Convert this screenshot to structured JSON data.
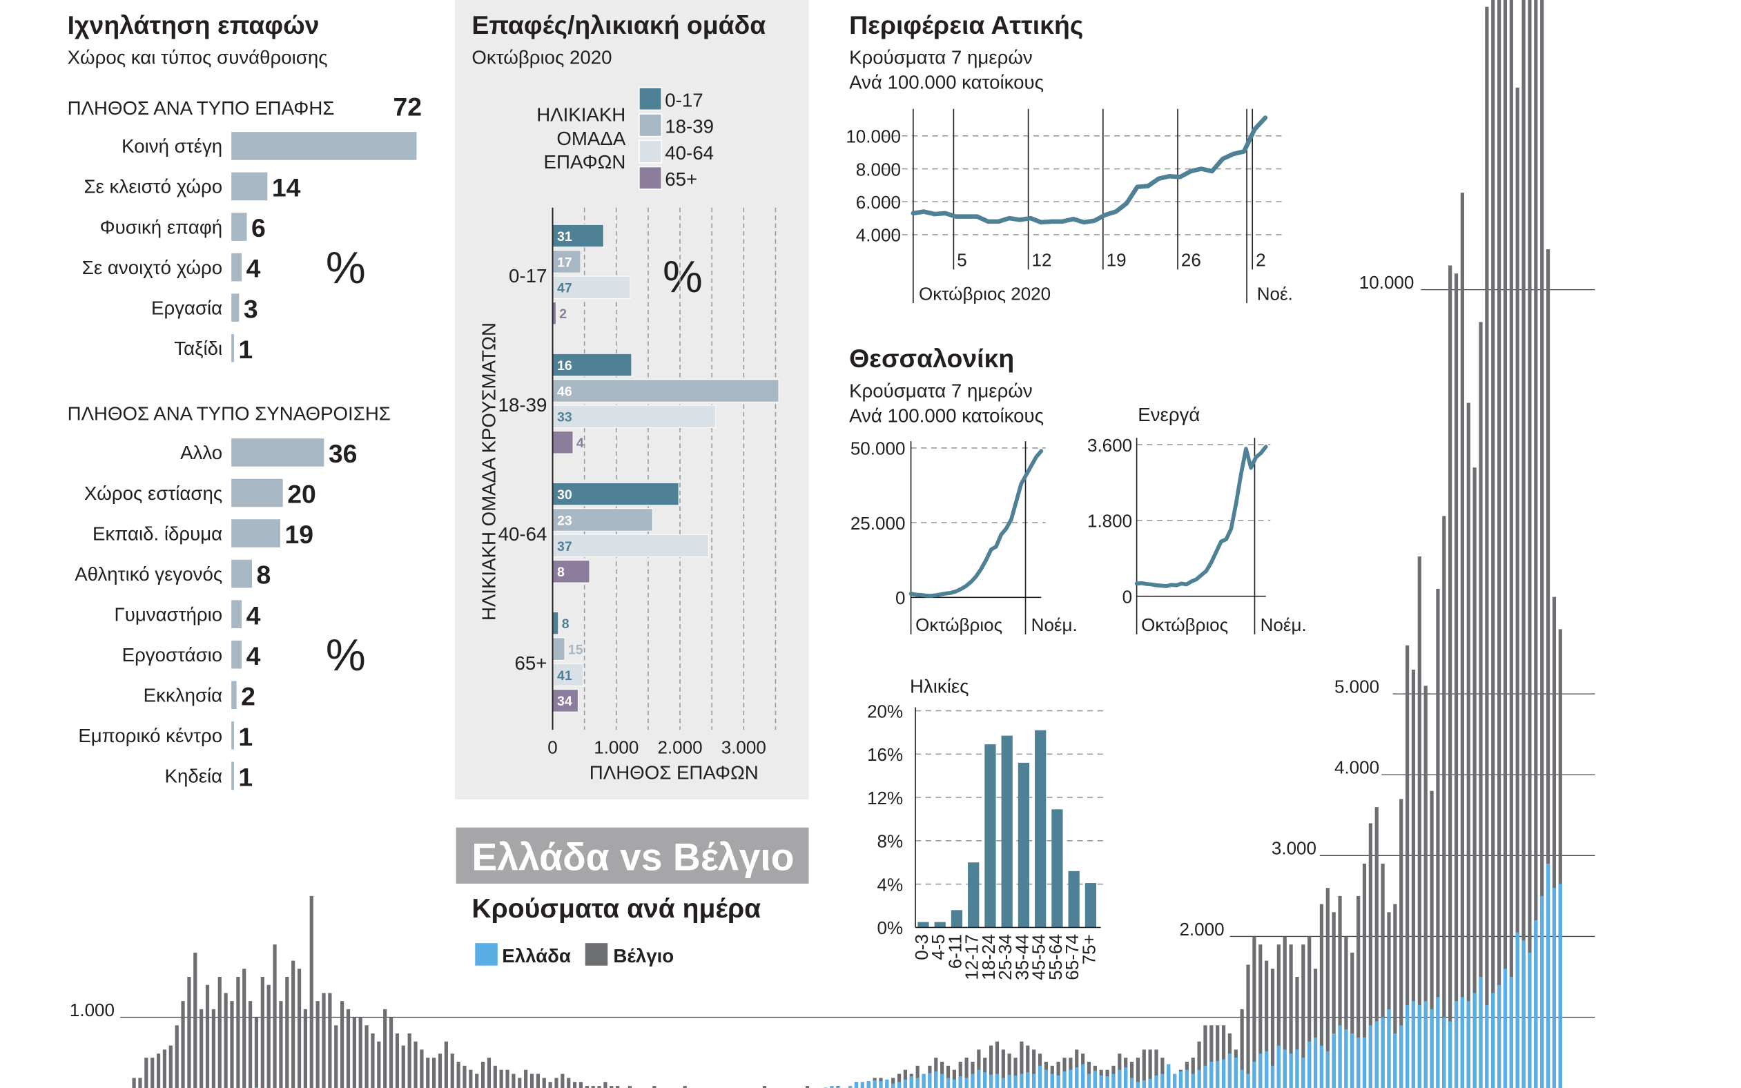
{
  "colors": {
    "teal": "#4f8196",
    "blue_gray": "#a7b8c4",
    "light": "#d9e1e7",
    "purple": "#8b7d9b",
    "panel_bg": "#ececec",
    "banner_bg": "#a6a6a8",
    "greece": "#5aaee6",
    "belgium": "#6d6e71"
  },
  "left_panel": {
    "title": "Ιχνηλάτηση επαφών",
    "subtitle": "Χώρος και τύπος συνάθροισης"
  },
  "middle_panel": {
    "title": "Επαφές/ηλικιακή ομάδα",
    "subtitle": "Οκτώβριος 2020"
  },
  "attica": {
    "title": "Περιφέρεια Αττικής",
    "subtitle_1": "Κρούσματα 7 ημερών",
    "subtitle_2": "Ανά 100.000 κατοίκους"
  },
  "thessaloniki": {
    "title": "Θεσσαλονίκη",
    "subtitle_1": "Κρούσματα 7 ημερών",
    "subtitle_2": "Ανά 100.000 κατοίκους"
  },
  "comparison": {
    "banner": "Ελλάδα vs Βέλγιο",
    "title": "Κρούσματα ανά ημέρα"
  },
  "chart_data": [
    {
      "type": "bar",
      "orientation": "horizontal",
      "heading": "ΠΛΗΘΟΣ ΑΝΑ ΤΥΠΟ ΕΠΑΦΗΣ",
      "unit": "%",
      "categories": [
        "Κοινή στέγη",
        "Σε κλειστό χώρο",
        "Φυσική επαφή",
        "Σε ανοιχτό χώρο",
        "Εργασία",
        "Ταξίδι"
      ],
      "values": [
        72,
        14,
        6,
        4,
        3,
        1
      ]
    },
    {
      "type": "bar",
      "orientation": "horizontal",
      "heading": "ΠΛΗΘΟΣ ΑΝΑ ΤΥΠΟ ΣΥΝΑΘΡΟΙΣΗΣ",
      "unit": "%",
      "categories": [
        "Αλλο",
        "Χώρος εστίασης",
        "Εκπαιδ. ίδρυμα",
        "Αθλητικό γεγονός",
        "Γυμναστήριο",
        "Εργοστάσιο",
        "Εκκλησία",
        "Εμπορικό κέντρο",
        "Κηδεία"
      ],
      "values": [
        36,
        20,
        19,
        8,
        4,
        4,
        2,
        1,
        1
      ]
    },
    {
      "type": "bar",
      "orientation": "horizontal",
      "grouped": true,
      "ylabel": "ΗΛΙΚΙΑΚΗ ΟΜΑΔΑ ΚΡΟΥΣΜΑΤΩΝ",
      "xlabel": "ΠΛΗΘΟΣ ΕΠΑΦΩΝ",
      "legend_title": [
        "ΗΛΙΚΙΑΚΗ",
        "ΟΜΑΔΑ",
        "ΕΠΑΦΩΝ"
      ],
      "legend_position": "top-right",
      "unit": "%",
      "categories": [
        "0-17",
        "18-39",
        "40-64",
        "65+"
      ],
      "xticks": [
        "0",
        "1.000",
        "2.000",
        "3.000"
      ],
      "xtick_values": [
        0,
        1000,
        2000,
        3000
      ],
      "xlim": [
        0,
        3500
      ],
      "grid": true,
      "series": [
        {
          "name": "0-17",
          "values": [
            800,
            1240,
            1980,
            90
          ],
          "labels": [
            "31",
            "16",
            "30",
            "8"
          ]
        },
        {
          "name": "18-39",
          "values": [
            440,
            3550,
            1570,
            190
          ],
          "labels": [
            "17",
            "46",
            "23",
            "15"
          ]
        },
        {
          "name": "40-64",
          "values": [
            1220,
            2560,
            2450,
            480
          ],
          "labels": [
            "47",
            "33",
            "37",
            "41"
          ]
        },
        {
          "name": "65+",
          "values": [
            50,
            320,
            580,
            400
          ],
          "labels": [
            "2",
            "4",
            "8",
            "34"
          ]
        }
      ]
    },
    {
      "type": "line",
      "x": [
        "1/10",
        "2/10",
        "3/10",
        "4/10",
        "5/10",
        "6/10",
        "7/10",
        "8/10",
        "9/10",
        "10/10",
        "11/10",
        "12/10",
        "13/10",
        "14/10",
        "15/10",
        "16/10",
        "17/10",
        "18/10",
        "19/10",
        "20/10",
        "21/10",
        "22/10",
        "23/10",
        "24/10",
        "25/10",
        "26/10",
        "27/10",
        "28/10",
        "29/10",
        "30/10",
        "31/10",
        "1/11",
        "2/11",
        "3/11"
      ],
      "values": [
        5300,
        5400,
        5250,
        5300,
        5100,
        5100,
        5100,
        4800,
        4800,
        5000,
        4900,
        5000,
        4750,
        4800,
        4800,
        4950,
        4750,
        4850,
        5200,
        5400,
        5900,
        6900,
        6950,
        7400,
        7550,
        7500,
        7850,
        8000,
        7850,
        8600,
        8900,
        9050,
        10400,
        11100
      ],
      "xticks": [
        "5",
        "12",
        "19",
        "26",
        "2"
      ],
      "month_labels": [
        "Οκτώβριος 2020",
        "Νοέ."
      ],
      "yticks": [
        "4.000",
        "6.000",
        "8.000",
        "10.000"
      ],
      "ytick_values": [
        4000,
        6000,
        8000,
        10000
      ],
      "grid": true
    },
    {
      "type": "line",
      "values": [
        1200,
        900,
        800,
        600,
        500,
        700,
        1000,
        1300,
        1500,
        2000,
        2800,
        3800,
        5200,
        7000,
        9500,
        12500,
        16000,
        17000,
        21000,
        23000,
        26000,
        32000,
        38000,
        41000,
        44000,
        47000,
        49000
      ],
      "month_labels": [
        "Οκτώβριος",
        "Νοέμ."
      ],
      "yticks": [
        "0",
        "25.000",
        "50.000"
      ],
      "ytick_values": [
        0,
        25000,
        50000
      ],
      "grid": true
    },
    {
      "type": "line",
      "title": "Ενεργά",
      "values": [
        300,
        310,
        290,
        280,
        260,
        250,
        240,
        270,
        260,
        300,
        280,
        350,
        400,
        500,
        600,
        800,
        1050,
        1300,
        1350,
        1600,
        2200,
        2900,
        3500,
        3050,
        3300,
        3400,
        3550
      ],
      "month_labels": [
        "Οκτώβριος",
        "Νοέμ."
      ],
      "yticks": [
        "0",
        "1.800",
        "3.600"
      ],
      "ytick_values": [
        0,
        1800,
        3600
      ],
      "grid": true
    },
    {
      "type": "bar",
      "title": "Ηλικίες",
      "categories": [
        "0-3",
        "4-5",
        "6-11",
        "12-17",
        "18-24",
        "25-34",
        "35-44",
        "45-54",
        "55-64",
        "65-74",
        "75+"
      ],
      "values": [
        0.5,
        0.5,
        1.6,
        6.0,
        16.9,
        17.7,
        15.2,
        18.2,
        10.9,
        5.2,
        4.1
      ],
      "yticks": [
        "0%",
        "4%",
        "8%",
        "12%",
        "16%",
        "20%"
      ],
      "ytick_values": [
        0,
        4,
        8,
        12,
        16,
        20
      ],
      "ylim": [
        0,
        20
      ],
      "grid": true
    },
    {
      "type": "bar",
      "overlay": true,
      "legend_position": "top-center",
      "yticks": [
        "1.000",
        "2.000",
        "3.000",
        "4.000",
        "5.000",
        "10.000"
      ],
      "ytick_values": [
        1000,
        2000,
        3000,
        4000,
        5000,
        10000
      ],
      "series": [
        {
          "name": "Βέλγιο",
          "values": [
            100,
            100,
            100,
            100,
            100,
            100,
            250,
            250,
            500,
            500,
            550,
            600,
            650,
            900,
            1200,
            1500,
            1800,
            1100,
            1400,
            1100,
            1500,
            1300,
            1200,
            1500,
            1600,
            1200,
            1000,
            1500,
            1400,
            1900,
            1200,
            1500,
            1700,
            1600,
            1100,
            2500,
            1200,
            1300,
            1300,
            900,
            1200,
            1100,
            1000,
            1000,
            900,
            800,
            700,
            1100,
            1000,
            800,
            650,
            800,
            700,
            600,
            500,
            500,
            550,
            700,
            550,
            450,
            400,
            350,
            300,
            450,
            500,
            400,
            350,
            350,
            300,
            250,
            350,
            300,
            300,
            250,
            200,
            250,
            300,
            250,
            200,
            200,
            150,
            150,
            150,
            200,
            150,
            150,
            100,
            150,
            100,
            100,
            100,
            150,
            100,
            100,
            100,
            100,
            150,
            100,
            100,
            100,
            100,
            100,
            100,
            100,
            100,
            100,
            100,
            100,
            100,
            150,
            100,
            100,
            100,
            100,
            100,
            100,
            150,
            100,
            100,
            100,
            100,
            150,
            100,
            150,
            200,
            150,
            200,
            250,
            250,
            200,
            250,
            300,
            350,
            300,
            400,
            300,
            400,
            500,
            450,
            400,
            350,
            450,
            500,
            450,
            600,
            500,
            650,
            700,
            600,
            550,
            500,
            700,
            650,
            600,
            550,
            450,
            400,
            450,
            500,
            500,
            600,
            550,
            450,
            400,
            350,
            350,
            400,
            550,
            500,
            450,
            500,
            600,
            600,
            600,
            500,
            350,
            300,
            350,
            450,
            500,
            700,
            900,
            900,
            900,
            900,
            800,
            600,
            1100,
            1650,
            2000,
            1900,
            1700,
            1600,
            1900,
            2000,
            1900,
            1500,
            1900,
            2000,
            1600,
            2400,
            2600,
            2300,
            2500,
            2000,
            1800,
            2500,
            2900,
            3400,
            3600,
            2900,
            2300,
            2400,
            3700,
            5600,
            5300,
            6700,
            5100,
            3800,
            6300,
            7200,
            10300,
            10200,
            11200,
            8600,
            7800,
            9600,
            13500,
            15000,
            16000,
            15000,
            15500,
            12500,
            14500,
            18000,
            16000,
            19000,
            10500,
            6200,
            5800
          ]
        },
        {
          "name": "Ελλάδα",
          "values": [
            0,
            0,
            5,
            5,
            10,
            20,
            20,
            30,
            40,
            60,
            50,
            80,
            100,
            60,
            40,
            50,
            70,
            100,
            90,
            80,
            100,
            80,
            110,
            120,
            90,
            120,
            130,
            80,
            60,
            70,
            80,
            60,
            50,
            70,
            60,
            40,
            50,
            30,
            40,
            30,
            20,
            20,
            30,
            20,
            15,
            20,
            15,
            10,
            15,
            10,
            10,
            10,
            10,
            5,
            5,
            10,
            10,
            10,
            5,
            5,
            20,
            15,
            10,
            10,
            10,
            5,
            5,
            10,
            10,
            10,
            10,
            10,
            10,
            20,
            10,
            15,
            20,
            20,
            10,
            20,
            20,
            15,
            20,
            30,
            25,
            30,
            40,
            30,
            25,
            35,
            30,
            40,
            35,
            40,
            35,
            30,
            40,
            45,
            40,
            35,
            30,
            40,
            35,
            50,
            55,
            40,
            50,
            45,
            45,
            60,
            70,
            60,
            50,
            70,
            90,
            80,
            100,
            110,
            120,
            130,
            150,
            140,
            120,
            150,
            200,
            200,
            210,
            220,
            210,
            230,
            180,
            200,
            230,
            270,
            250,
            300,
            310,
            330,
            300,
            250,
            230,
            270,
            250,
            300,
            350,
            320,
            290,
            300,
            250,
            290,
            280,
            300,
            320,
            300,
            400,
            350,
            300,
            280,
            330,
            350,
            380,
            420,
            300,
            340,
            280,
            270,
            300,
            350,
            380,
            250,
            200,
            220,
            240,
            280,
            300,
            420,
            300,
            330,
            350,
            300,
            350,
            400,
            450,
            460,
            480,
            550,
            500,
            350,
            300,
            450,
            550,
            580,
            400,
            650,
            600,
            550,
            600,
            500,
            700,
            750,
            650,
            580,
            800,
            900,
            850,
            800,
            750,
            750,
            900,
            950,
            1000,
            1100,
            800,
            900,
            1150,
            1200,
            1150,
            1200,
            1100,
            1250,
            1000,
            950,
            1200,
            1250,
            1200,
            1300,
            1500,
            1150,
            1300,
            1400,
            1600,
            1500,
            2050,
            1950,
            1800,
            2200,
            2500,
            2900,
            2600,
            2650
          ]
        }
      ]
    }
  ]
}
